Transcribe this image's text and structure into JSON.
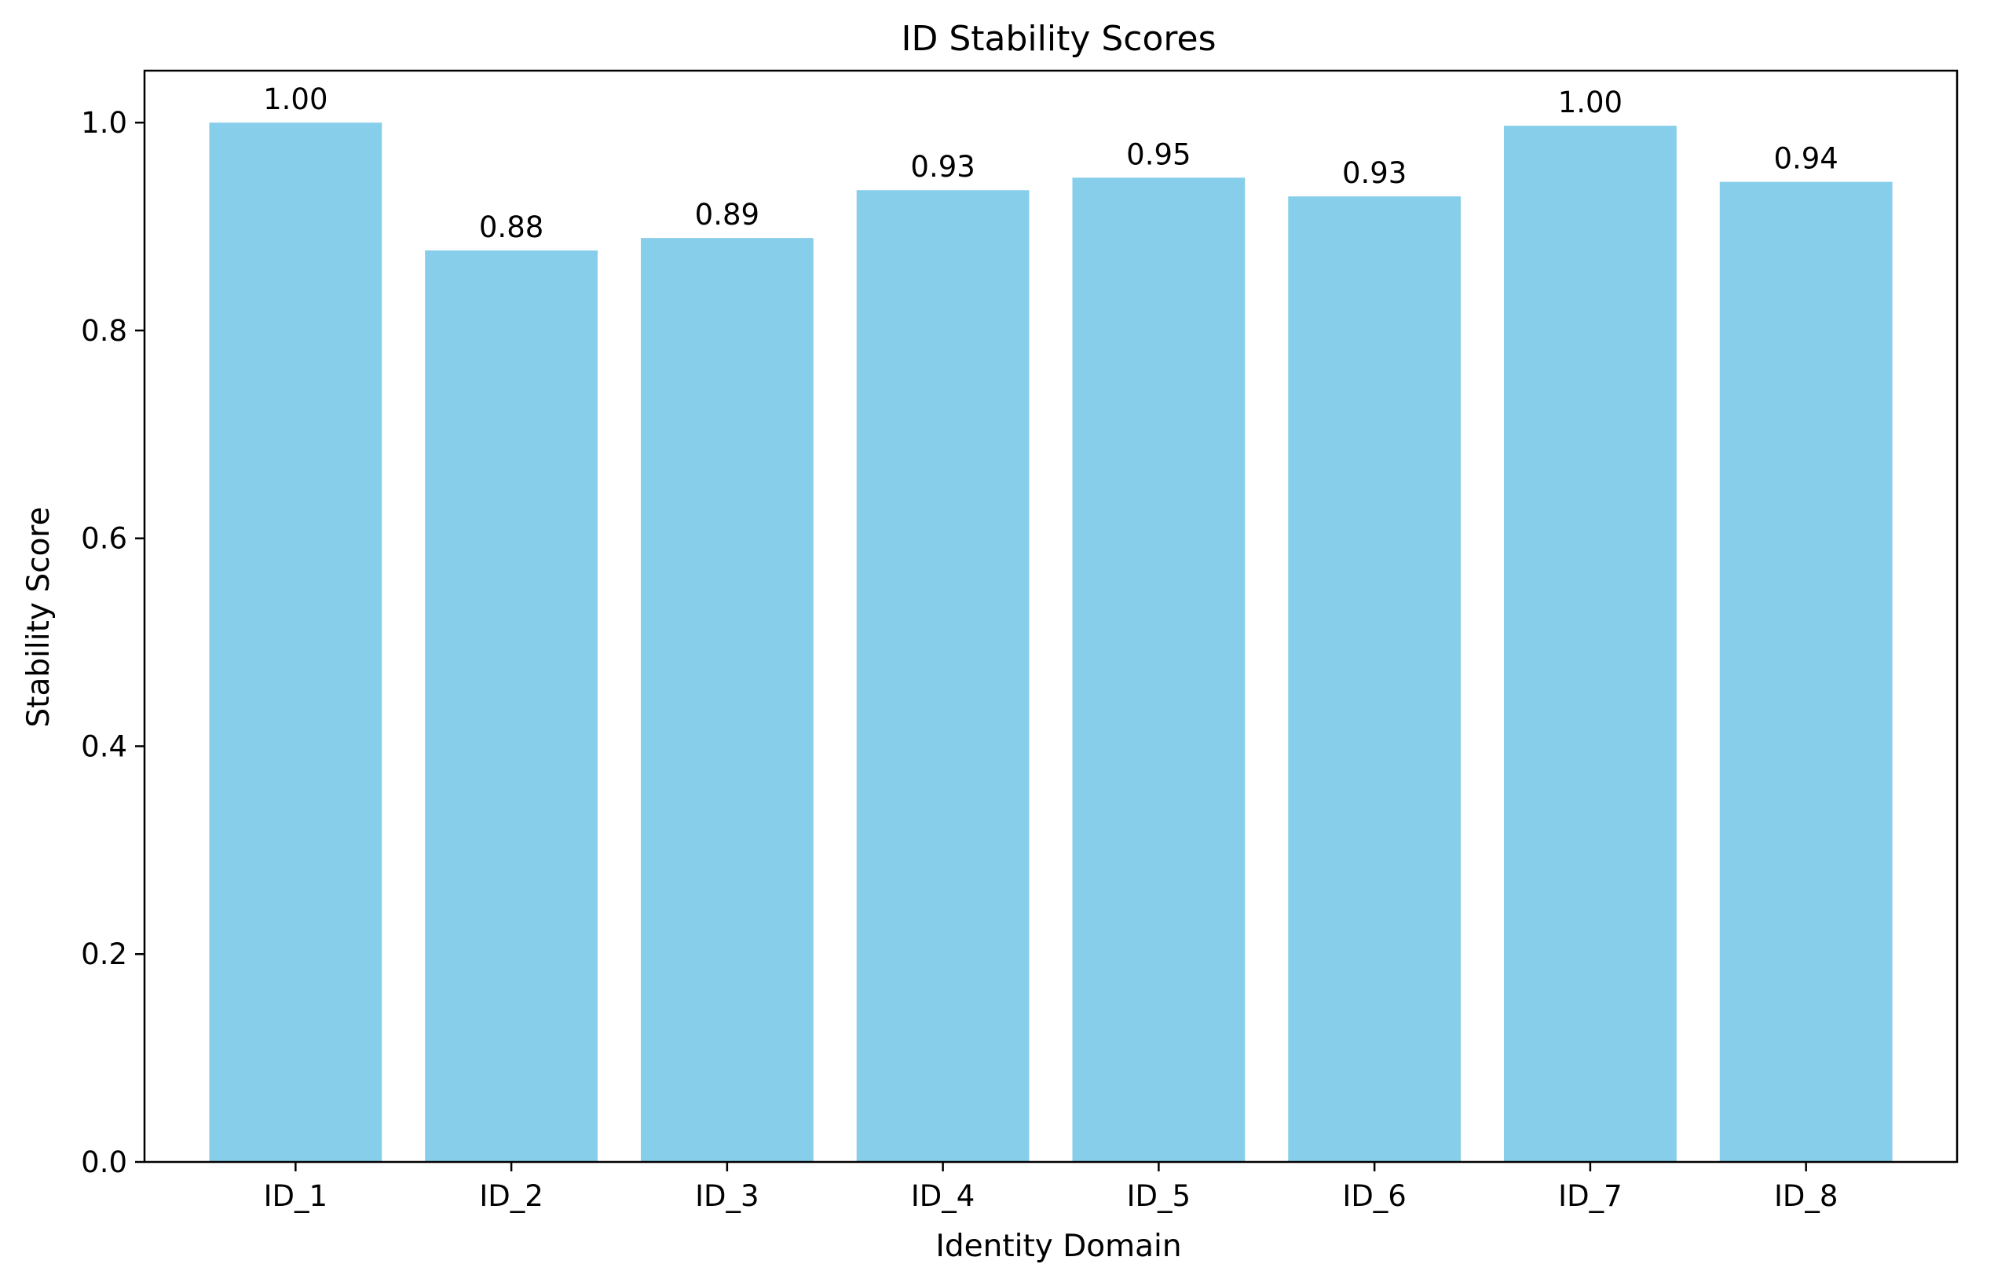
{
  "chart_data": {
    "type": "bar",
    "title": "ID Stability Scores",
    "xlabel": "Identity Domain",
    "ylabel": "Stability Score",
    "categories": [
      "ID_1",
      "ID_2",
      "ID_3",
      "ID_4",
      "ID_5",
      "ID_6",
      "ID_7",
      "ID_8"
    ],
    "values": [
      1.0,
      0.877,
      0.889,
      0.935,
      0.947,
      0.929,
      0.997,
      0.943
    ],
    "value_labels": [
      "1.00",
      "0.88",
      "0.89",
      "0.93",
      "0.95",
      "0.93",
      "1.00",
      "0.94"
    ],
    "ylim": [
      0,
      1.05
    ],
    "yticks": [
      0.0,
      0.2,
      0.4,
      0.6,
      0.8,
      1.0
    ],
    "ytick_labels": [
      "0.0",
      "0.2",
      "0.4",
      "0.6",
      "0.8",
      "1.0"
    ],
    "bar_color": "#87ceeb",
    "grid": false,
    "legend": "none"
  }
}
